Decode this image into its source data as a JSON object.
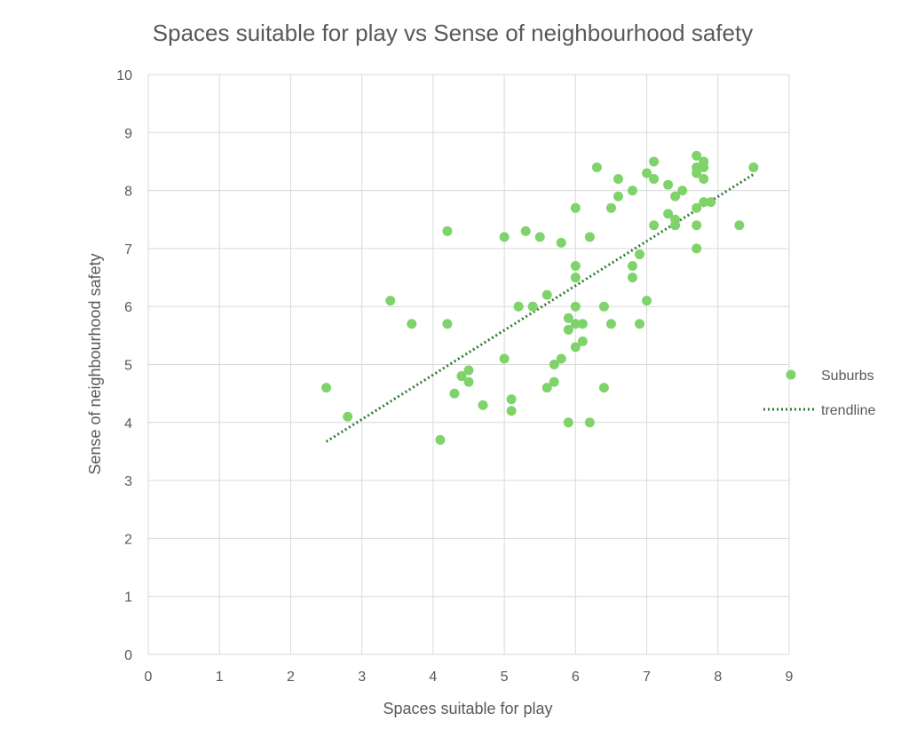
{
  "chart_data": {
    "type": "scatter",
    "title": "Spaces suitable for play  vs  Sense of neighbourhood safety",
    "xlabel": "Spaces suitable for play",
    "ylabel": "Sense of neighbourhood safety",
    "xlim": [
      0,
      9
    ],
    "ylim": [
      0,
      10
    ],
    "x_ticks": [
      "0",
      "1",
      "2",
      "3",
      "4",
      "5",
      "6",
      "7",
      "8",
      "9"
    ],
    "y_ticks": [
      "0",
      "1",
      "2",
      "3",
      "4",
      "5",
      "6",
      "7",
      "8",
      "9",
      "10"
    ],
    "grid": true,
    "legend_position": "right",
    "series": [
      {
        "name": "Suburbs",
        "color": "#7fd36b",
        "points": [
          [
            2.5,
            4.6
          ],
          [
            2.8,
            4.1
          ],
          [
            3.4,
            6.1
          ],
          [
            3.7,
            5.7
          ],
          [
            4.1,
            3.7
          ],
          [
            4.2,
            7.3
          ],
          [
            4.2,
            5.7
          ],
          [
            4.3,
            4.5
          ],
          [
            4.4,
            4.8
          ],
          [
            4.5,
            4.9
          ],
          [
            4.5,
            4.7
          ],
          [
            4.7,
            4.3
          ],
          [
            5.0,
            7.2
          ],
          [
            5.0,
            5.1
          ],
          [
            5.1,
            4.4
          ],
          [
            5.1,
            4.2
          ],
          [
            5.2,
            6.0
          ],
          [
            5.3,
            7.3
          ],
          [
            5.4,
            6.0
          ],
          [
            5.5,
            7.2
          ],
          [
            5.6,
            6.2
          ],
          [
            5.6,
            4.6
          ],
          [
            5.7,
            5.0
          ],
          [
            5.7,
            4.7
          ],
          [
            5.8,
            7.1
          ],
          [
            5.8,
            5.1
          ],
          [
            5.9,
            5.8
          ],
          [
            5.9,
            5.6
          ],
          [
            5.9,
            4.0
          ],
          [
            6.0,
            7.7
          ],
          [
            6.0,
            6.7
          ],
          [
            6.0,
            6.5
          ],
          [
            6.0,
            6.0
          ],
          [
            6.0,
            5.7
          ],
          [
            6.0,
            5.3
          ],
          [
            6.1,
            5.7
          ],
          [
            6.1,
            5.4
          ],
          [
            6.2,
            7.2
          ],
          [
            6.2,
            4.0
          ],
          [
            6.3,
            8.4
          ],
          [
            6.4,
            6.0
          ],
          [
            6.4,
            4.6
          ],
          [
            6.5,
            7.7
          ],
          [
            6.5,
            5.7
          ],
          [
            6.6,
            8.2
          ],
          [
            6.6,
            7.9
          ],
          [
            6.8,
            8.0
          ],
          [
            6.8,
            6.7
          ],
          [
            6.8,
            6.5
          ],
          [
            6.9,
            6.9
          ],
          [
            6.9,
            5.7
          ],
          [
            7.0,
            8.3
          ],
          [
            7.0,
            6.1
          ],
          [
            7.1,
            8.5
          ],
          [
            7.1,
            8.2
          ],
          [
            7.1,
            7.4
          ],
          [
            7.3,
            8.1
          ],
          [
            7.3,
            7.6
          ],
          [
            7.4,
            7.9
          ],
          [
            7.4,
            7.5
          ],
          [
            7.4,
            7.4
          ],
          [
            7.5,
            8.0
          ],
          [
            7.7,
            8.6
          ],
          [
            7.7,
            8.4
          ],
          [
            7.7,
            8.3
          ],
          [
            7.7,
            7.7
          ],
          [
            7.7,
            7.4
          ],
          [
            7.7,
            7.0
          ],
          [
            7.8,
            8.5
          ],
          [
            7.8,
            8.4
          ],
          [
            7.8,
            8.2
          ],
          [
            7.8,
            7.8
          ],
          [
            7.9,
            7.8
          ],
          [
            8.3,
            7.4
          ],
          [
            8.5,
            8.4
          ]
        ]
      }
    ],
    "trendline": {
      "name": "trendline",
      "color": "#2e7d32",
      "style": "dotted",
      "from": [
        2.5,
        3.67
      ],
      "to": [
        8.5,
        8.28
      ]
    }
  }
}
